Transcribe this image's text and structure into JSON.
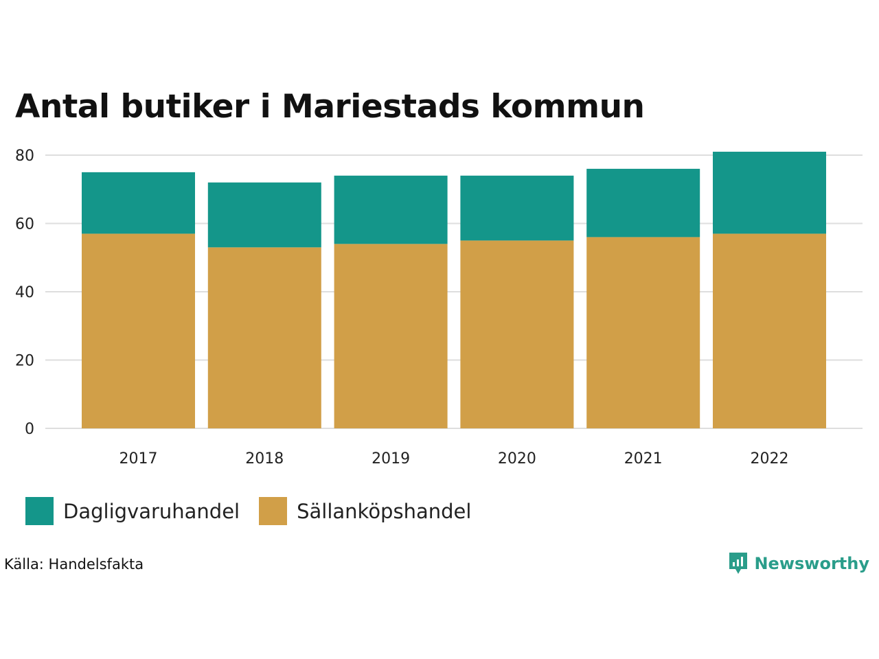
{
  "chart_data": {
    "type": "bar",
    "stacked": true,
    "title": "Antal butiker i Mariestads kommun",
    "xlabel": "",
    "ylabel": "",
    "categories": [
      "2017",
      "2018",
      "2019",
      "2020",
      "2021",
      "2022"
    ],
    "series": [
      {
        "name": "Sällanköpshandel",
        "color": "#D19F48",
        "values": [
          57,
          53,
          54,
          55,
          56,
          57
        ]
      },
      {
        "name": "Dagligvaruhandel",
        "color": "#14968A",
        "values": [
          18,
          19,
          20,
          19,
          20,
          24
        ]
      }
    ],
    "ylim": [
      0,
      80
    ],
    "yticks": [
      0,
      20,
      40,
      60,
      80
    ],
    "grid": true,
    "legend_position": "bottom-left"
  },
  "legend": {
    "items": [
      {
        "label": "Dagligvaruhandel",
        "color": "#14968A"
      },
      {
        "label": "Sällanköpshandel",
        "color": "#D19F48"
      }
    ]
  },
  "source": "Källa: Handelsfakta",
  "brand": {
    "name": "Newsworthy",
    "icon": "newsworthy-logo-icon",
    "color": "#2A9D8A"
  }
}
